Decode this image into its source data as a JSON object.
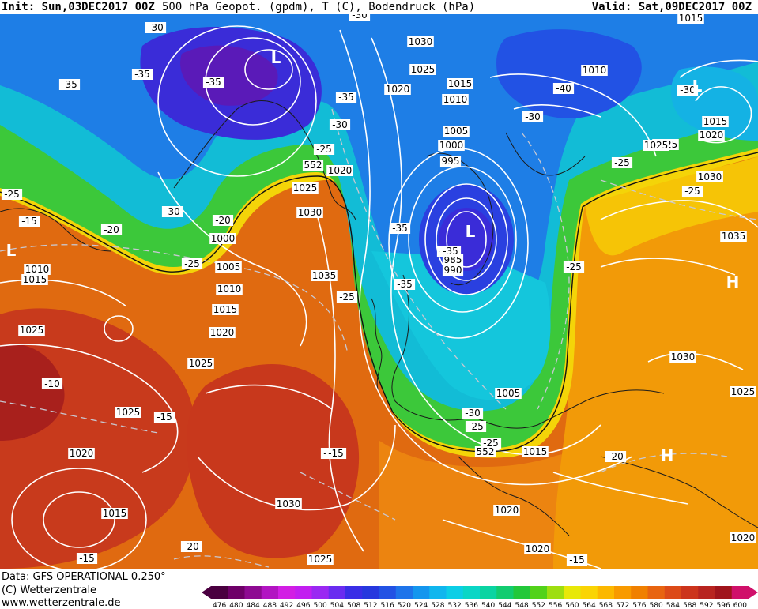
{
  "header": {
    "init": "Init: Sun,03DEC2017 00Z",
    "description": "500 hPa Geopot. (gpdm), T (C), Bodendruck (hPa)",
    "valid": "Valid: Sat,09DEC2017 00Z"
  },
  "footer": {
    "data_source": "Data: GFS OPERATIONAL 0.250°",
    "copyright": "(C) Wetterzentrale",
    "website": "www.wetterzentrale.de"
  },
  "legend": {
    "ticks": [
      "476",
      "480",
      "484",
      "488",
      "492",
      "496",
      "500",
      "504",
      "508",
      "512",
      "516",
      "520",
      "524",
      "528",
      "532",
      "536",
      "540",
      "544",
      "548",
      "552",
      "556",
      "560",
      "564",
      "568",
      "572",
      "576",
      "580",
      "584",
      "588",
      "592",
      "596",
      "600"
    ],
    "colors": [
      "#4a0040",
      "#6e0068",
      "#8e0a92",
      "#b214c2",
      "#d21ee4",
      "#c21ef0",
      "#9a28f2",
      "#6a2cf0",
      "#3a2ee6",
      "#2638de",
      "#2252e4",
      "#1e74ea",
      "#1496ee",
      "#10b6ee",
      "#0ccee6",
      "#0ad6c6",
      "#0ad4a2",
      "#12cc70",
      "#22c83a",
      "#52d21a",
      "#9ede10",
      "#e8e808",
      "#fad404",
      "#fcb800",
      "#f89a00",
      "#f08000",
      "#e86410",
      "#dc4a18",
      "#cc341c",
      "#b82420",
      "#a0141c",
      "#d0106a"
    ]
  },
  "map": {
    "pressure_labels": [
      "1030",
      "1025",
      "1015",
      "1020",
      "1010",
      "1005",
      "1000",
      "995",
      "985",
      "990",
      "1015",
      "1010",
      "1030",
      "1025",
      "1020",
      "1000",
      "1010",
      "1015",
      "1005",
      "1010",
      "1015",
      "1020",
      "1025",
      "1030",
      "1035",
      "1025",
      "1025",
      "1025",
      "1020",
      "1015",
      "1030",
      "1025",
      "1020",
      "1015",
      "1005",
      "1020",
      "1015",
      "1025",
      "1030",
      "1035",
      "1030",
      "1025",
      "1020",
      "1020"
    ],
    "temp_labels": [
      "-30",
      "-35",
      "-35",
      "-35",
      "-30",
      "-25",
      "-30",
      "-35",
      "-25",
      "-40",
      "-30",
      "-30",
      "-25",
      "-25",
      "-25",
      "-15",
      "-20",
      "-30",
      "-20",
      "-25",
      "-35",
      "-35",
      "-35",
      "-25",
      "-20",
      "-25",
      "-10",
      "-15",
      "-15",
      "-15",
      "-30",
      "-25",
      "-20",
      "-15",
      "-15",
      "-35"
    ],
    "height_labels": [
      "552",
      "552"
    ],
    "low_marker": "L",
    "high_marker": "H"
  }
}
